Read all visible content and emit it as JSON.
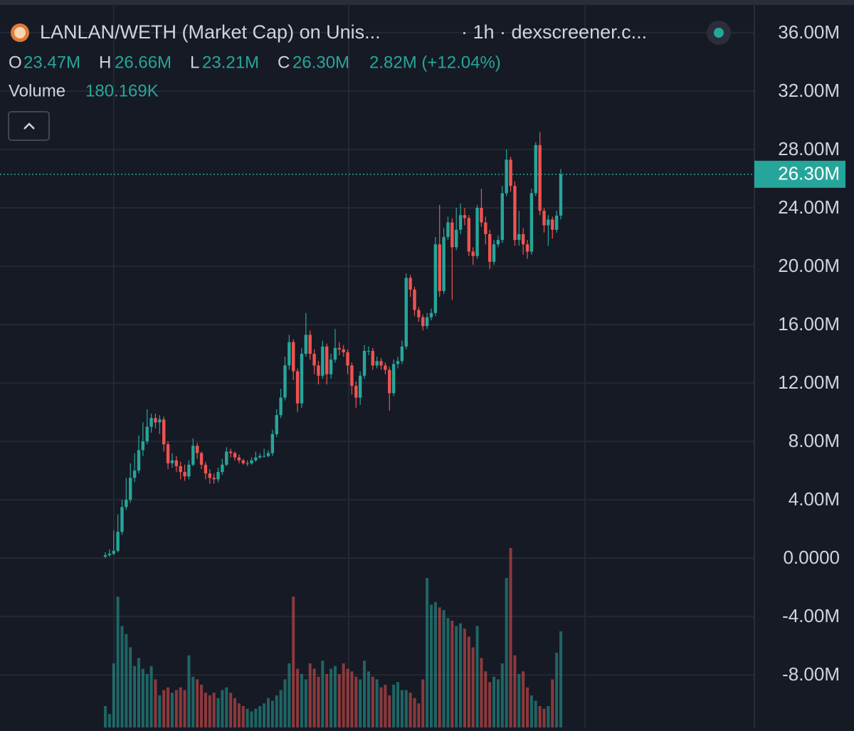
{
  "chart_data": {
    "type": "candlestick",
    "title": "LANLAN/WETH (Market Cap) on Unis...",
    "subtitle": "· 1h · dexscreener.c...",
    "legend": {
      "o_label": "O",
      "o": "23.47M",
      "h_label": "H",
      "h": "26.66M",
      "l_label": "L",
      "l": "23.21M",
      "c_label": "C",
      "c": "26.30M",
      "change": "2.82M (+12.04%)",
      "volume_label": "Volume",
      "volume": "180.169K"
    },
    "last_price_label": "26.30M",
    "up_color": "#26a69a",
    "down_color": "#ef5350",
    "ylim": [
      -11.6,
      37.85
    ],
    "yticks": [
      {
        "value": 36,
        "label": "36.00M"
      },
      {
        "value": 32,
        "label": "32.00M"
      },
      {
        "value": 28,
        "label": "28.00M"
      },
      {
        "value": 24,
        "label": "24.00M"
      },
      {
        "value": 20,
        "label": "20.00M"
      },
      {
        "value": 16,
        "label": "16.00M"
      },
      {
        "value": 12,
        "label": "12.00M"
      },
      {
        "value": 8,
        "label": "8.00M"
      },
      {
        "value": 4,
        "label": "4.00M"
      },
      {
        "value": 0,
        "label": "0.0000"
      },
      {
        "value": -4,
        "label": "-4.00M"
      },
      {
        "value": -8,
        "label": "-8.00M"
      }
    ],
    "grid": true,
    "open": [
      0.1,
      0.2,
      0.3,
      0.5,
      1.8,
      3.5,
      4.0,
      5.5,
      6.0,
      7.4,
      8.0,
      9.0,
      9.6,
      9.3,
      9.5,
      7.8,
      6.5,
      6.7,
      6.3,
      5.9,
      5.6,
      6.4,
      7.7,
      7.2,
      6.4,
      5.8,
      5.5,
      5.4,
      5.9,
      6.4,
      7.3,
      7.2,
      6.9,
      6.7,
      6.5,
      6.5,
      6.7,
      6.9,
      7.0,
      7.0,
      7.2,
      8.5,
      9.8,
      11.0,
      13.2,
      14.8,
      12.8,
      10.6,
      14.0,
      15.3,
      14.0,
      13.2,
      12.5,
      14.5,
      12.6,
      13.6,
      14.4,
      14.3,
      14.1,
      13.2,
      11.8,
      11.0,
      12.5,
      14.2,
      14.2,
      13.2,
      13.5,
      13.2,
      12.9,
      11.3,
      13.3,
      13.5,
      14.5,
      19.2,
      18.4,
      17.0,
      16.5,
      15.9,
      16.5,
      16.8,
      21.5,
      18.3,
      22.0,
      23.0,
      21.3,
      22.5,
      23.5,
      23.3,
      21.0,
      20.7,
      24.0,
      23.0,
      22.2,
      20.3,
      21.5,
      21.8,
      25.0,
      27.3,
      25.5,
      21.8,
      22.2,
      21.5,
      21.0,
      25.0,
      28.3,
      23.8,
      22.8,
      23.2,
      22.5,
      23.47
    ],
    "high": [
      0.4,
      0.6,
      1.9,
      3.0,
      4.0,
      5.5,
      6.5,
      7.2,
      8.4,
      9.3,
      10.2,
      9.9,
      9.9,
      9.8,
      9.7,
      8.0,
      7.2,
      7.0,
      6.6,
      6.4,
      6.7,
      8.2,
      7.9,
      7.3,
      6.6,
      6.1,
      5.8,
      6.2,
      6.8,
      7.6,
      7.5,
      7.3,
      7.1,
      6.8,
      6.7,
      6.9,
      7.3,
      7.2,
      7.5,
      7.4,
      8.8,
      10.2,
      11.6,
      13.8,
      15.3,
      15.0,
      13.0,
      14.4,
      16.8,
      15.6,
      14.3,
      13.5,
      14.9,
      14.7,
      14.0,
      15.7,
      14.8,
      14.6,
      14.3,
      13.4,
      12.1,
      12.8,
      14.6,
      14.5,
      14.4,
      13.8,
      13.7,
      13.4,
      13.1,
      13.6,
      13.8,
      14.9,
      19.5,
      19.4,
      18.6,
      17.2,
      16.7,
      16.8,
      17.1,
      22.0,
      24.2,
      22.6,
      23.4,
      23.3,
      24.0,
      24.3,
      24.0,
      23.5,
      21.3,
      24.2,
      25.3,
      23.4,
      22.5,
      21.8,
      22.1,
      25.5,
      28.0,
      27.5,
      25.8,
      23.8,
      22.6,
      21.8,
      25.3,
      28.5,
      29.2,
      24.0,
      23.5,
      23.4,
      23.8,
      26.66
    ],
    "low": [
      0.0,
      0.1,
      0.2,
      0.4,
      1.6,
      3.3,
      3.8,
      5.2,
      5.8,
      7.0,
      7.8,
      8.6,
      8.9,
      8.5,
      7.3,
      6.1,
      6.2,
      5.9,
      5.4,
      5.3,
      5.4,
      6.3,
      6.8,
      6.1,
      5.4,
      5.1,
      5.1,
      5.2,
      5.7,
      6.3,
      6.9,
      6.7,
      6.5,
      6.4,
      6.3,
      6.4,
      6.6,
      6.8,
      6.9,
      6.9,
      7.0,
      8.3,
      9.6,
      10.8,
      12.9,
      12.2,
      10.0,
      10.3,
      13.8,
      13.6,
      12.6,
      11.9,
      12.3,
      11.9,
      12.3,
      13.4,
      13.9,
      13.8,
      12.6,
      11.2,
      10.3,
      10.5,
      12.3,
      13.9,
      12.9,
      13.0,
      12.9,
      12.6,
      10.1,
      11.1,
      13.0,
      13.3,
      14.3,
      17.9,
      16.6,
      16.2,
      15.6,
      15.7,
      16.3,
      16.6,
      17.9,
      18.1,
      21.8,
      17.7,
      21.1,
      22.2,
      22.8,
      20.7,
      20.1,
      20.5,
      22.7,
      21.5,
      19.8,
      20.1,
      21.3,
      21.6,
      24.8,
      25.1,
      21.4,
      21.4,
      20.8,
      20.5,
      20.8,
      24.8,
      23.5,
      22.3,
      21.4,
      21.9,
      22.3,
      23.21
    ],
    "close": [
      0.2,
      0.3,
      0.5,
      1.8,
      3.5,
      4.0,
      5.5,
      6.0,
      7.4,
      8.0,
      9.0,
      9.6,
      9.3,
      9.5,
      7.8,
      6.5,
      6.7,
      6.3,
      5.9,
      5.6,
      6.4,
      7.7,
      7.2,
      6.4,
      5.8,
      5.5,
      5.4,
      5.9,
      6.4,
      7.3,
      7.2,
      6.9,
      6.7,
      6.5,
      6.5,
      6.7,
      6.9,
      7.0,
      7.0,
      7.2,
      8.5,
      9.8,
      11.0,
      13.2,
      14.8,
      12.8,
      10.6,
      14.0,
      15.3,
      14.0,
      13.2,
      12.5,
      14.5,
      12.6,
      13.6,
      14.4,
      14.3,
      14.1,
      13.2,
      11.8,
      11.0,
      12.5,
      14.2,
      14.2,
      13.2,
      13.5,
      13.2,
      12.9,
      11.3,
      13.3,
      13.5,
      14.5,
      19.2,
      18.4,
      17.0,
      16.5,
      15.9,
      16.5,
      16.8,
      21.5,
      18.3,
      22.0,
      23.0,
      21.3,
      22.5,
      23.5,
      23.3,
      21.0,
      20.7,
      24.0,
      23.0,
      22.2,
      20.3,
      21.5,
      21.8,
      25.0,
      27.3,
      25.5,
      21.8,
      22.2,
      21.5,
      21.0,
      25.0,
      28.3,
      23.8,
      22.8,
      23.2,
      22.5,
      23.47,
      26.3
    ],
    "volume": [
      40,
      25,
      120,
      245,
      190,
      175,
      150,
      115,
      130,
      110,
      100,
      115,
      90,
      60,
      70,
      75,
      65,
      70,
      75,
      70,
      135,
      95,
      90,
      80,
      65,
      60,
      65,
      55,
      70,
      75,
      65,
      55,
      45,
      40,
      35,
      30,
      35,
      40,
      45,
      55,
      50,
      60,
      70,
      90,
      120,
      245,
      110,
      100,
      90,
      120,
      110,
      95,
      125,
      100,
      110,
      115,
      100,
      120,
      110,
      105,
      95,
      90,
      125,
      105,
      95,
      90,
      75,
      80,
      60,
      80,
      85,
      70,
      70,
      65,
      55,
      45,
      90,
      280,
      230,
      235,
      225,
      220,
      205,
      200,
      190,
      195,
      185,
      170,
      150,
      190,
      130,
      105,
      85,
      95,
      90,
      120,
      280,
      336,
      135,
      100,
      105,
      75,
      60,
      50,
      40,
      35,
      40,
      90,
      140,
      180.169
    ]
  }
}
